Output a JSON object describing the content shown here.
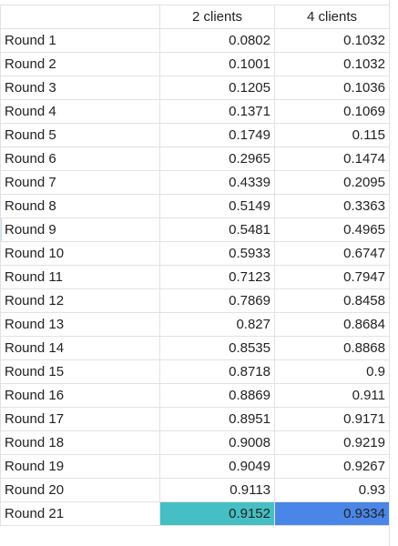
{
  "headers": {
    "label": "",
    "col1": "2 clients",
    "col2": "4 clients"
  },
  "colors": {
    "highlight_2_clients": "#45bfc4",
    "highlight_4_clients": "#4a86e8",
    "grid_line": "#e2e2e2"
  },
  "rows": [
    {
      "label": "Round 1",
      "c2": "0.0802",
      "c4": "0.1032"
    },
    {
      "label": "Round 2",
      "c2": "0.1001",
      "c4": "0.1032"
    },
    {
      "label": "Round 3",
      "c2": "0.1205",
      "c4": "0.1036"
    },
    {
      "label": "Round 4",
      "c2": "0.1371",
      "c4": "0.1069"
    },
    {
      "label": "Round 5",
      "c2": "0.1749",
      "c4": "0.115"
    },
    {
      "label": "Round 6",
      "c2": "0.2965",
      "c4": "0.1474"
    },
    {
      "label": "Round 7",
      "c2": "0.4339",
      "c4": "0.2095"
    },
    {
      "label": "Round 8",
      "c2": "0.5149",
      "c4": "0.3363"
    },
    {
      "label": "Round 9",
      "c2": "0.5481",
      "c4": "0.4965"
    },
    {
      "label": "Round 10",
      "c2": "0.5933",
      "c4": "0.6747"
    },
    {
      "label": "Round 11",
      "c2": "0.7123",
      "c4": "0.7947"
    },
    {
      "label": "Round 12",
      "c2": "0.7869",
      "c4": "0.8458"
    },
    {
      "label": "Round 13",
      "c2": "0.827",
      "c4": "0.8684"
    },
    {
      "label": "Round 14",
      "c2": "0.8535",
      "c4": "0.8868"
    },
    {
      "label": "Round 15",
      "c2": "0.8718",
      "c4": "0.9"
    },
    {
      "label": "Round 16",
      "c2": "0.8869",
      "c4": "0.911"
    },
    {
      "label": "Round 17",
      "c2": "0.8951",
      "c4": "0.9171"
    },
    {
      "label": "Round 18",
      "c2": "0.9008",
      "c4": "0.9219"
    },
    {
      "label": "Round 19",
      "c2": "0.9049",
      "c4": "0.9267"
    },
    {
      "label": "Round 20",
      "c2": "0.9113",
      "c4": "0.93"
    },
    {
      "label": "Round 21",
      "c2": "0.9152",
      "c4": "0.9334",
      "highlight": true
    }
  ]
}
